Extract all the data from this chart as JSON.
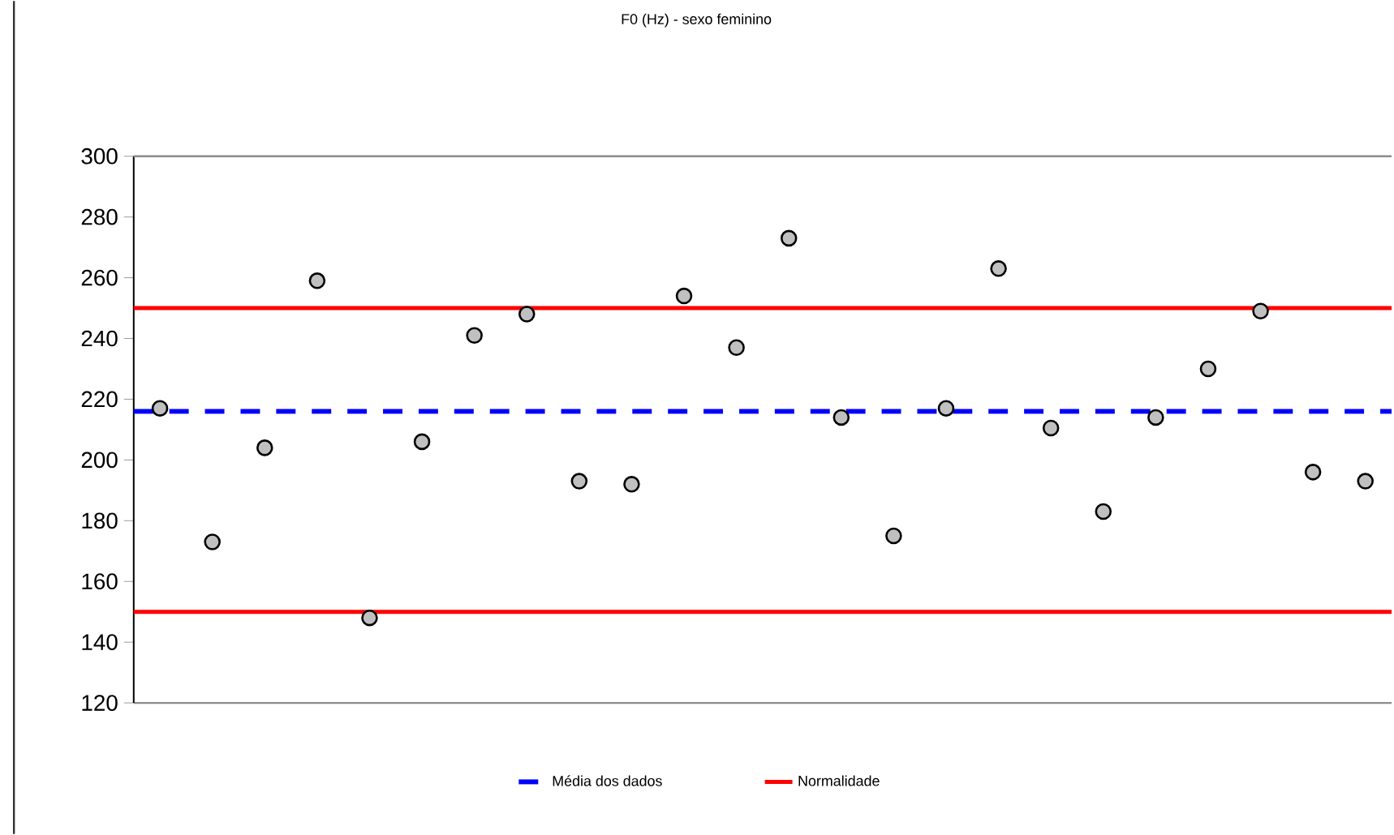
{
  "chart_data": {
    "type": "scatter",
    "title": "F0 (Hz) - sexo feminino",
    "categories": [
      null,
      null,
      null,
      null,
      null,
      null,
      null,
      null,
      null,
      null,
      null,
      null,
      null,
      null,
      null,
      null,
      null,
      null,
      null,
      null,
      null,
      null,
      null,
      null
    ],
    "series": [
      {
        "color": "#c0c0c0",
        "values": [
          217,
          173,
          204,
          259,
          148,
          206,
          241,
          248,
          193,
          192,
          254,
          237,
          273,
          214,
          175,
          217,
          263,
          210.5,
          183,
          214,
          230,
          249,
          196,
          193
        ]
      }
    ],
    "ylim": [
      120,
      300
    ],
    "yticks": [
      120,
      140,
      160,
      180,
      200,
      220,
      240,
      260,
      280,
      300
    ],
    "ref_lines": [
      {
        "axis": "y",
        "value": 216,
        "label": "Média dos dados",
        "color": "#0000ff",
        "line_style": "dashed"
      },
      {
        "axis": "y",
        "value": 250,
        "label": "Normalidade",
        "color": "#ff0000",
        "line_style": "solid"
      },
      {
        "axis": "y",
        "value": 150,
        "color": "#ff0000",
        "line_style": "solid"
      }
    ],
    "grid": false,
    "legend": "bottom"
  }
}
